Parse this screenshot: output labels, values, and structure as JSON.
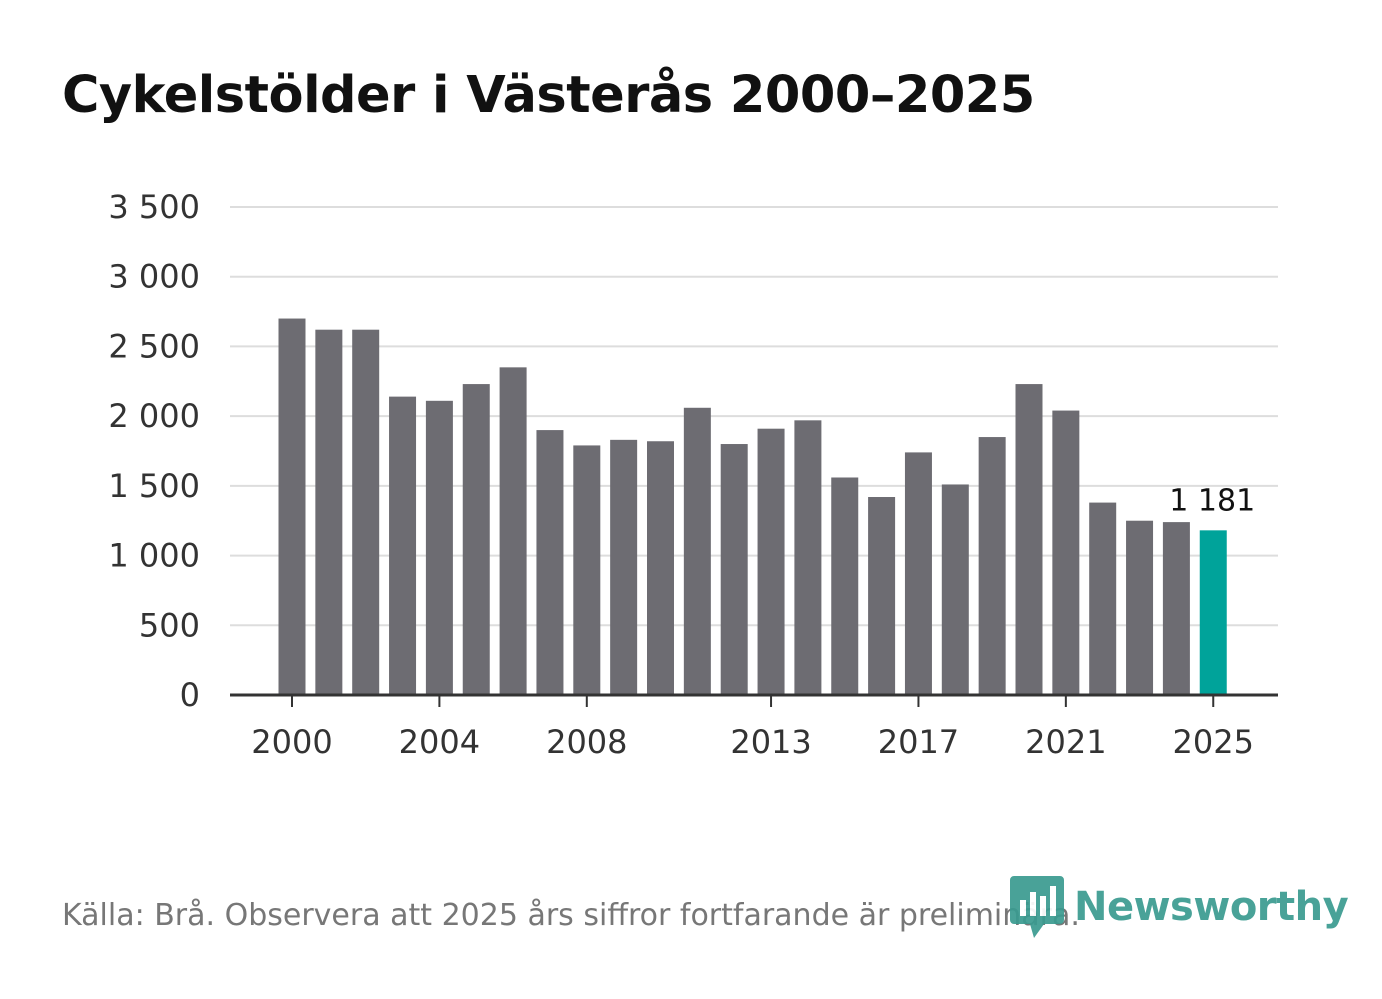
{
  "chart_data": {
    "type": "bar",
    "title": "Cykelstölder i Västerås 2000–2025",
    "xlabel": "",
    "ylabel": "",
    "ylim": [
      0,
      3500
    ],
    "yticks": [
      0,
      500,
      1000,
      1500,
      2000,
      2500,
      3000,
      3500
    ],
    "ytick_labels": [
      "0",
      "500",
      "1 000",
      "1 500",
      "2 000",
      "2 500",
      "3 000",
      "3 500"
    ],
    "grid": true,
    "categories": [
      2000,
      2001,
      2002,
      2003,
      2004,
      2005,
      2006,
      2007,
      2008,
      2009,
      2010,
      2011,
      2012,
      2013,
      2014,
      2015,
      2016,
      2017,
      2018,
      2019,
      2020,
      2021,
      2022,
      2023,
      2024,
      2025
    ],
    "values": [
      2700,
      2620,
      2620,
      2140,
      2110,
      2230,
      2350,
      1900,
      1790,
      1830,
      1820,
      2060,
      1800,
      1910,
      1970,
      1560,
      1420,
      1740,
      1510,
      1850,
      2230,
      2040,
      1380,
      1250,
      1240,
      1181
    ],
    "xticks": [
      2000,
      2004,
      2008,
      2013,
      2017,
      2021,
      2025
    ],
    "highlight_index": 25,
    "highlight_label": "1 181",
    "colors": {
      "bar": "#6d6c72",
      "highlight": "#00a39a",
      "grid": "#dddddd",
      "axis": "#333333"
    }
  },
  "footer": {
    "source": "Källa: Brå. Observera att 2025 års siffror fortfarande är preliminära.",
    "brand": "Newsworthy",
    "brand_color": "#3a9b90"
  }
}
